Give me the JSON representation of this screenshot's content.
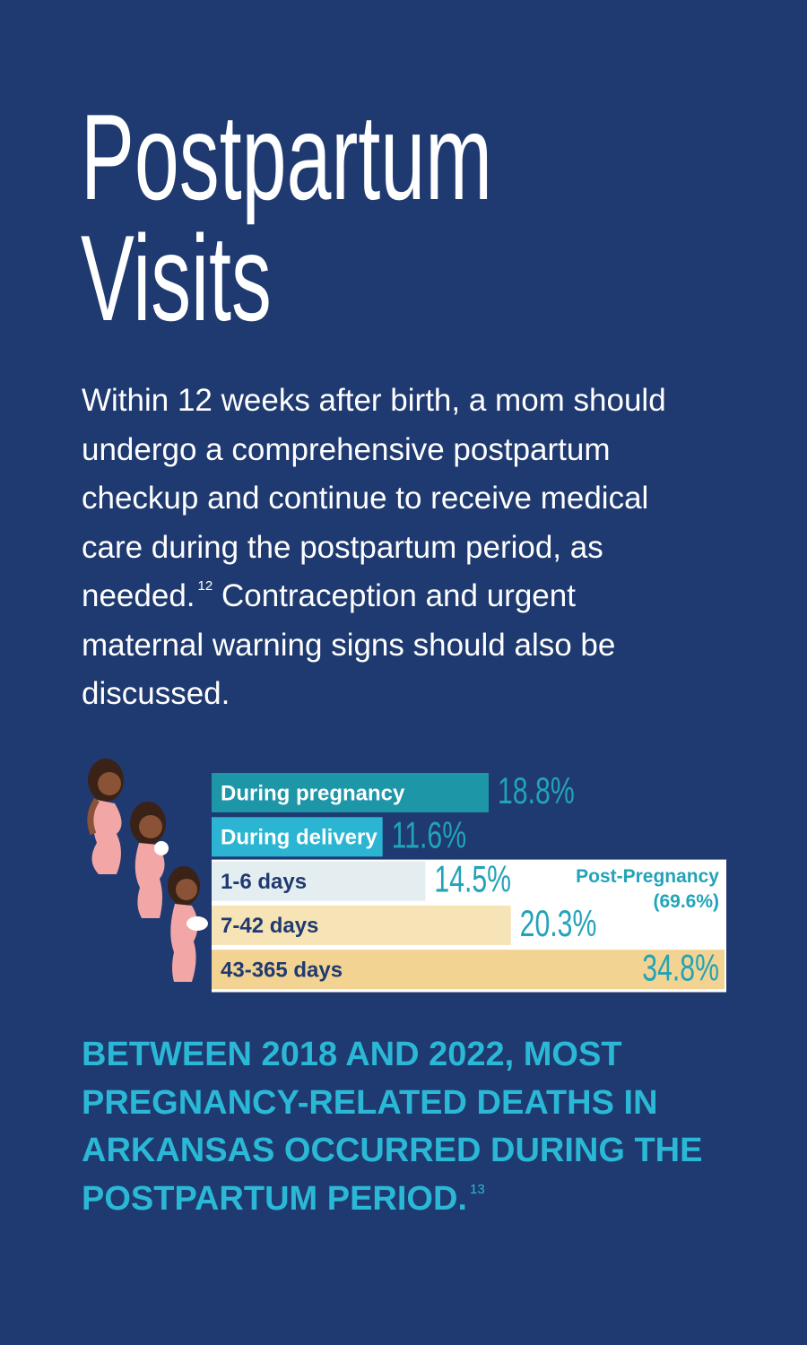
{
  "title": [
    "Postpartum",
    "Visits"
  ],
  "intro": {
    "text": "Within 12 weeks after birth, a mom should undergo a comprehensive postpartum checkup and continue to receive medical care during the postpartum period, as needed.",
    "note": "12",
    "text2": "Contraception and urgent maternal warning signs should also be discussed."
  },
  "chart_data": {
    "type": "bar",
    "orientation": "horizontal",
    "categories": [
      "During pregnancy",
      "During delivery",
      "1-6 days",
      "7-42 days",
      "43-365 days"
    ],
    "values": [
      18.8,
      11.6,
      14.5,
      20.3,
      34.8
    ],
    "value_labels": [
      "18.8%",
      "11.6%",
      "14.5%",
      "20.3%",
      "34.8%"
    ],
    "colors": [
      "#1d96a8",
      "#2bb5d3",
      "#e4edf0",
      "#f6e3b6",
      "#f2d392"
    ],
    "text_colors": [
      "#ffffff",
      "#ffffff",
      "#1f3a70",
      "#1f3a70",
      "#1f3a70"
    ],
    "value_label_color": "#22a3b8",
    "group": {
      "label": "Post-Pregnancy",
      "value": 69.6,
      "value_label": "(69.6%)",
      "first": 2,
      "color": "#ffffff",
      "text_color": "#22a3b8"
    }
  },
  "footer": {
    "text": "BETWEEN 2018 AND 2022, MOST PREGNANCY-RELATED DEATHS IN ARKANSAS OCCURRED DURING THE POSTPARTUM PERIOD.",
    "note": "13"
  }
}
